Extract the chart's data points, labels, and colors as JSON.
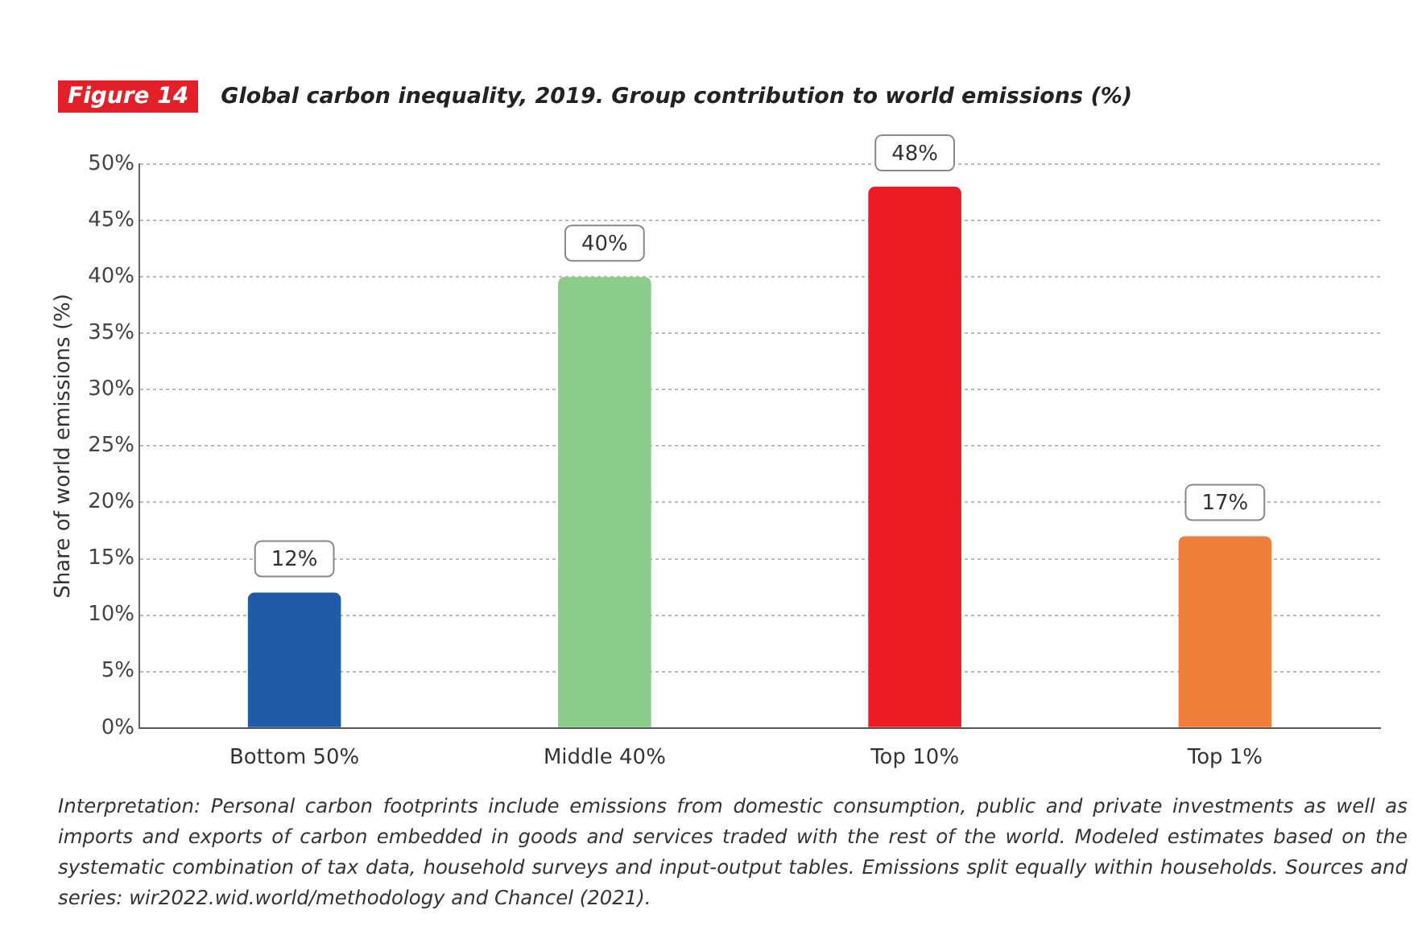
{
  "chart_data": {
    "type": "bar",
    "title": "Global carbon inequality, 2019. Group contribution to world emissions (%)",
    "ylabel": "Share of world emissions (%)",
    "categories": [
      "Bottom 50%",
      "Middle 40%",
      "Top 10%",
      "Top 1%"
    ],
    "values": [
      12,
      40,
      48,
      17
    ],
    "value_labels": [
      "12%",
      "40%",
      "48%",
      "17%"
    ],
    "colors": [
      "#1f5ba6",
      "#8bcc8a",
      "#ec1c24",
      "#f07f3c"
    ],
    "ylim": [
      0,
      50
    ],
    "yticks": [
      {
        "value": 0,
        "label": "0%"
      },
      {
        "value": 5,
        "label": "5%"
      },
      {
        "value": 10,
        "label": "10%"
      },
      {
        "value": 15,
        "label": "15%"
      },
      {
        "value": 20,
        "label": "20%"
      },
      {
        "value": 25,
        "label": "25%"
      },
      {
        "value": 30,
        "label": "30%"
      },
      {
        "value": 35,
        "label": "35%"
      },
      {
        "value": 40,
        "label": "40%"
      },
      {
        "value": 45,
        "label": "45%"
      },
      {
        "value": 50,
        "label": "50%"
      }
    ],
    "grid": "y",
    "annotations": [
      "Figure 14",
      "Interpretation: Personal carbon footprints include emissions from domestic consumption, public and private investments as well as imports and exports of carbon embedded in goods and services traded with the rest of the world. Modeled estimates based on the systematic combination of tax data, household surveys and input-output tables. Emissions split equally within households. Sources and series: wir2022.wid.world/methodology and Chancel (2021)."
    ]
  }
}
